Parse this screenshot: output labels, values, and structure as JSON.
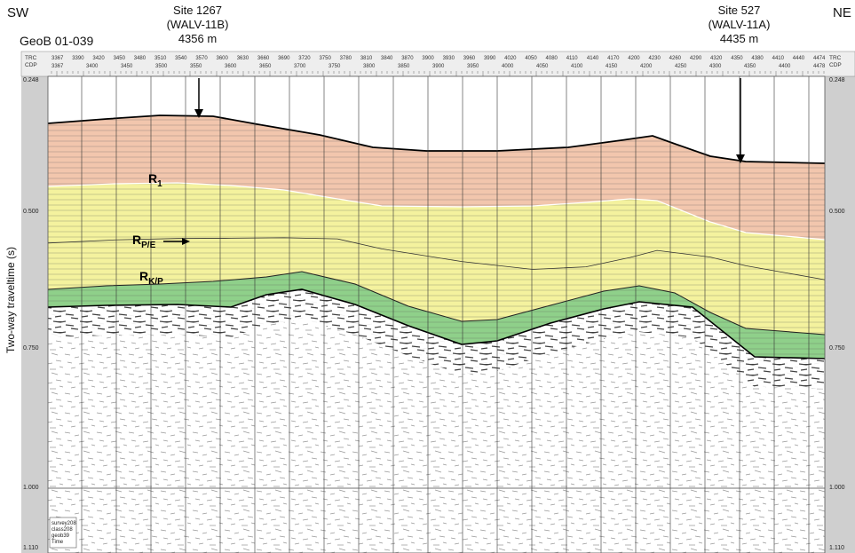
{
  "corners": {
    "left_dir": "SW",
    "right_dir": "NE",
    "line_name": "GeoB 01-039"
  },
  "sites": [
    {
      "name": "Site 1267",
      "alias": "(WALV-11B)",
      "depth": "4356 m"
    },
    {
      "name": "Site 527",
      "alias": "(WALV-11A)",
      "depth": "4435 m"
    }
  ],
  "y_axis": {
    "label": "Two-way traveltime (s)",
    "ticks": [
      "0.248",
      "0.500",
      "0.750",
      "1.000",
      "1.110"
    ]
  },
  "header": {
    "trc_label": "TRC",
    "cdp_label": "CDP",
    "trc_values": [
      "3367",
      "3390",
      "3420",
      "3450",
      "3480",
      "3510",
      "3540",
      "3570",
      "3600",
      "3630",
      "3660",
      "3690",
      "3720",
      "3750",
      "3780",
      "3810",
      "3840",
      "3870",
      "3900",
      "3930",
      "3960",
      "3990",
      "4020",
      "4050",
      "4080",
      "4110",
      "4140",
      "4170",
      "4200",
      "4230",
      "4260",
      "4290",
      "4320",
      "4350",
      "4380",
      "4410",
      "4440",
      "4474"
    ],
    "cdp_values": [
      "3367",
      "3400",
      "3450",
      "3500",
      "3550",
      "3600",
      "3650",
      "3700",
      "3750",
      "3800",
      "3850",
      "3900",
      "3950",
      "4000",
      "4050",
      "4100",
      "4150",
      "4200",
      "4250",
      "4300",
      "4350",
      "4400",
      "4478"
    ]
  },
  "horizons": [
    {
      "id": "R1",
      "base": "R",
      "sub": "1"
    },
    {
      "id": "RPE",
      "base": "R",
      "sub": "P/E"
    },
    {
      "id": "RKP",
      "base": "R",
      "sub": "K/P"
    }
  ],
  "info_box": [
    "survey208",
    "class208",
    "geob39",
    "Time"
  ],
  "colors": {
    "unit_upper": "#f2c6ad",
    "unit_middle": "#f4f29e",
    "unit_lower": "#8fd08a",
    "panel_gray": "#cfcfcf"
  }
}
